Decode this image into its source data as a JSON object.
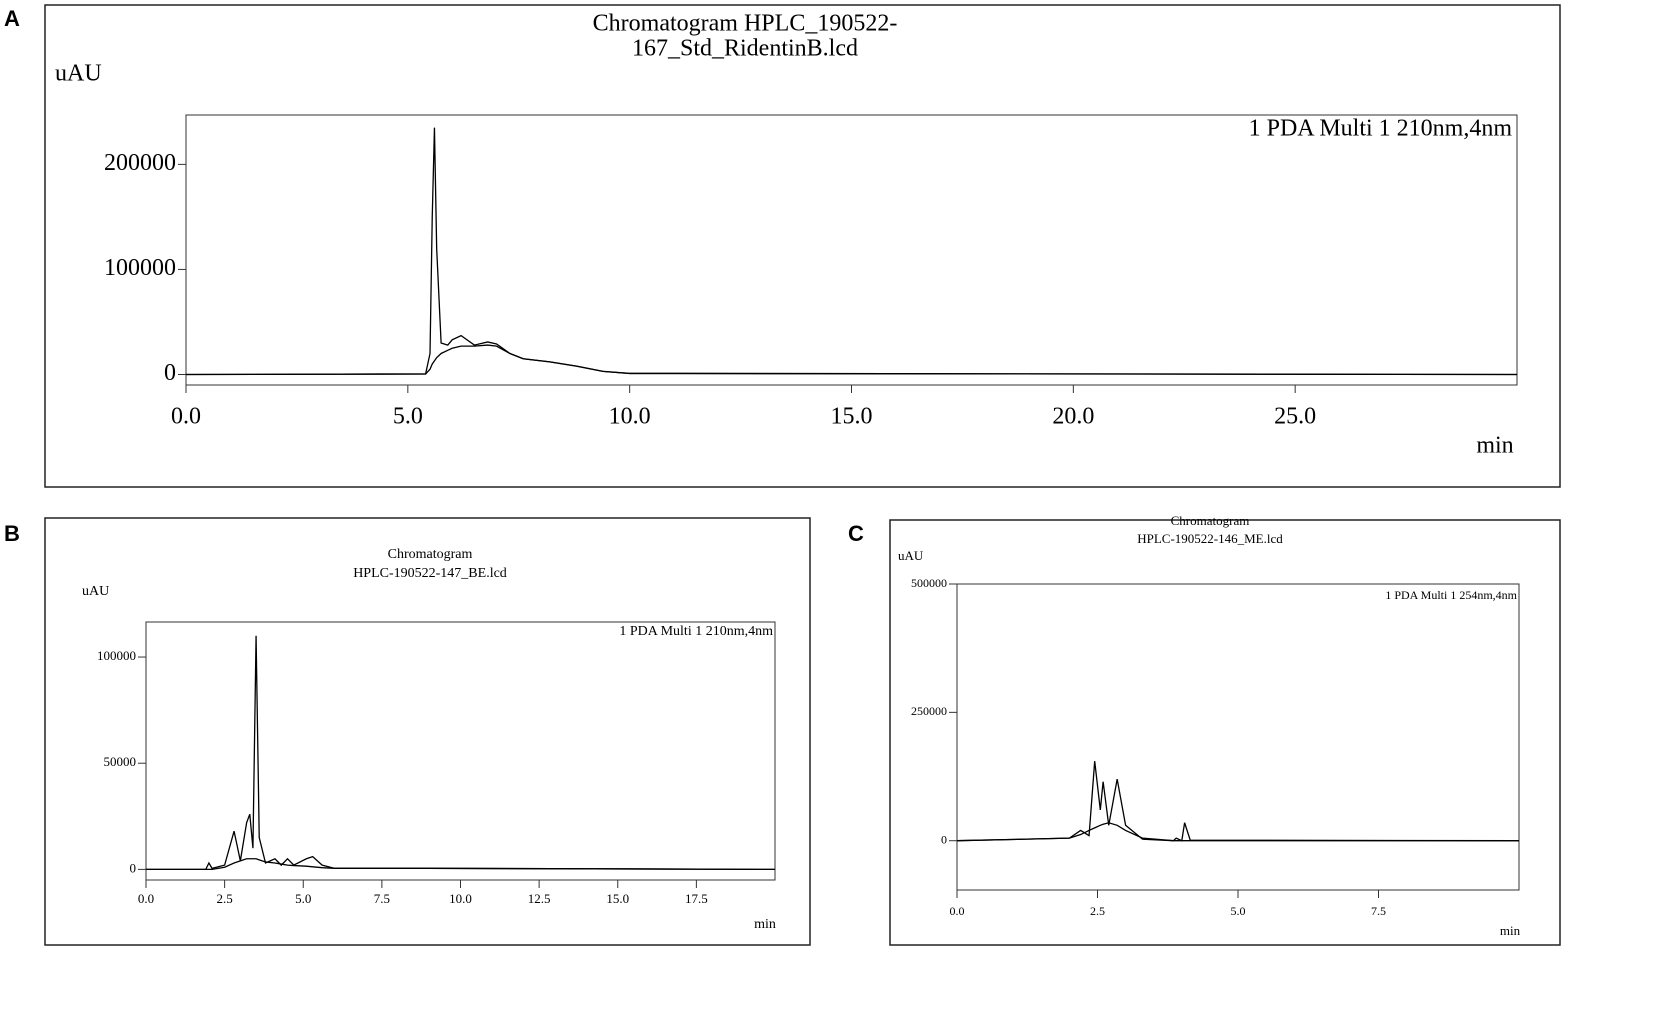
{
  "chart_data": [
    {
      "type": "line",
      "panel_label": "A",
      "title": [
        "Chromatogram HPLC_190522-",
        "167_Std_RidentinB.lcd"
      ],
      "y_label": "uAU",
      "x_label": "min",
      "x": [
        0,
        5.4,
        5.5,
        5.55,
        5.6,
        5.65,
        5.75,
        5.9,
        6.0,
        6.2,
        6.5,
        6.8,
        7.0,
        7.3,
        7.6,
        8.2,
        8.8,
        9.4,
        10,
        11,
        30
      ],
      "series": [
        {
          "name": "1 PDA Multi 1 210nm,4nm",
          "color": "#000000",
          "values": [
            0,
            500,
            20000,
            150000,
            235000,
            120000,
            30000,
            28000,
            33000,
            37000,
            28000,
            31000,
            29000,
            20000,
            15000,
            12000,
            8000,
            3000,
            1000,
            1000,
            0
          ]
        },
        {
          "color": "#000000",
          "values": [
            0,
            500,
            5000,
            10000,
            13000,
            16000,
            20000,
            23000,
            25000,
            27000,
            27000,
            28000,
            27000,
            20000,
            15000,
            12000,
            8000,
            3000,
            1000,
            1000,
            0
          ]
        }
      ],
      "xlim": [
        0,
        30
      ],
      "ylim": [
        -10000,
        247000
      ],
      "xticks": [
        {
          "value": 0,
          "label": "0.0"
        },
        {
          "value": 5,
          "label": "5.0"
        },
        {
          "value": 10,
          "label": "10.0"
        },
        {
          "value": 15,
          "label": "15.0"
        },
        {
          "value": 20,
          "label": "20.0"
        },
        {
          "value": 25,
          "label": "25.0"
        }
      ],
      "yticks": [
        0,
        100000,
        200000
      ]
    },
    {
      "type": "line",
      "panel_label": "B",
      "title": [
        "Chromatogram",
        "HPLC-190522-147_BE.lcd"
      ],
      "y_label": "uAU",
      "x_label": "min",
      "x": [
        0,
        1.9,
        2.0,
        2.1,
        2.5,
        2.8,
        3.0,
        3.2,
        3.3,
        3.4,
        3.5,
        3.6,
        3.8,
        4.1,
        4.3,
        4.5,
        4.7,
        5.1,
        5.3,
        5.6,
        6.0,
        9.0,
        20
      ],
      "series": [
        {
          "name": "1 PDA Multi 1 210nm,4nm",
          "color": "#000000",
          "values": [
            0,
            0,
            3000,
            500,
            2000,
            18000,
            4000,
            22000,
            26000,
            10000,
            110000,
            15000,
            3000,
            5000,
            2000,
            5000,
            2000,
            5000,
            6000,
            2000,
            500,
            500,
            0
          ]
        },
        {
          "color": "#000000",
          "values": [
            0,
            0,
            0,
            0,
            1000,
            3000,
            4000,
            5000,
            5000,
            5000,
            5000,
            4500,
            3500,
            3000,
            2500,
            2000,
            1800,
            1500,
            1200,
            800,
            500,
            500,
            0
          ]
        }
      ],
      "xlim": [
        0,
        20
      ],
      "ylim": [
        -5000,
        116500
      ],
      "xticks": [
        {
          "value": 0,
          "label": "0.0"
        },
        {
          "value": 2.5,
          "label": "2.5"
        },
        {
          "value": 5,
          "label": "5.0"
        },
        {
          "value": 7.5,
          "label": "7.5"
        },
        {
          "value": 10,
          "label": "10.0"
        },
        {
          "value": 12.5,
          "label": "12.5"
        },
        {
          "value": 15,
          "label": "15.0"
        },
        {
          "value": 17.5,
          "label": "17.5"
        }
      ],
      "yticks": [
        0,
        50000,
        100000
      ]
    },
    {
      "type": "line",
      "panel_label": "C",
      "title": [
        "Chromatogram",
        "HPLC-190522-146_ME.lcd"
      ],
      "y_label": "uAU",
      "x_label": "min",
      "x": [
        0,
        2.0,
        2.2,
        2.35,
        2.45,
        2.55,
        2.6,
        2.7,
        2.85,
        3.0,
        3.3,
        3.85,
        3.9,
        4.0,
        4.05,
        4.15,
        10
      ],
      "series": [
        {
          "name": "1 PDA Multi 1 254nm,4nm",
          "color": "#000000",
          "values": [
            0,
            5000,
            20000,
            10000,
            155000,
            60000,
            115000,
            30000,
            120000,
            30000,
            3000,
            0,
            5000,
            0,
            35000,
            1000,
            0
          ]
        },
        {
          "color": "#000000",
          "values": [
            0,
            5000,
            12000,
            20000,
            25000,
            30000,
            32000,
            35000,
            30000,
            20000,
            5000,
            0,
            0,
            0,
            0,
            0,
            0
          ]
        }
      ],
      "xlim": [
        0,
        10
      ],
      "ylim": [
        -96000,
        500000
      ],
      "xticks": [
        {
          "value": 0,
          "label": "0.0"
        },
        {
          "value": 2.5,
          "label": "2.5"
        },
        {
          "value": 5,
          "label": "5.0"
        },
        {
          "value": 7.5,
          "label": "7.5"
        }
      ],
      "yticks": [
        0,
        250000,
        500000
      ]
    }
  ]
}
